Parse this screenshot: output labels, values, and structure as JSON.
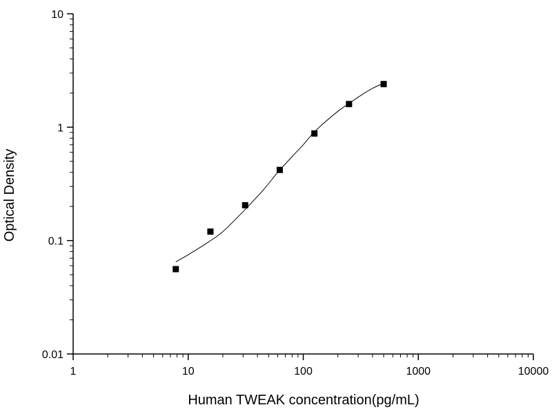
{
  "chart_data": {
    "type": "scatter",
    "title": "",
    "xlabel": "Human TWEAK concentration(pg/mL)",
    "ylabel": "Optical Density",
    "xscale": "log",
    "yscale": "log",
    "xlim": [
      1,
      10000
    ],
    "ylim": [
      0.01,
      10
    ],
    "x_ticks": [
      "1",
      "10",
      "100",
      "1000",
      "10000"
    ],
    "y_ticks": [
      "0.01",
      "0.1",
      "1",
      "10"
    ],
    "grid": false,
    "legend": "none",
    "series": [
      {
        "marker": "square",
        "color": "#000000",
        "x": [
          7.8,
          15.6,
          31.25,
          62.5,
          125,
          250,
          500
        ],
        "y": [
          0.056,
          0.12,
          0.205,
          0.42,
          0.88,
          1.6,
          2.4
        ]
      }
    ],
    "fit_curve": {
      "color": "#000000",
      "x_range": [
        7.8,
        500
      ],
      "points": [
        [
          7.8,
          0.065
        ],
        [
          10,
          0.075
        ],
        [
          15,
          0.097
        ],
        [
          20,
          0.12
        ],
        [
          30,
          0.18
        ],
        [
          45,
          0.28
        ],
        [
          60,
          0.4
        ],
        [
          80,
          0.55
        ],
        [
          100,
          0.7
        ],
        [
          120,
          0.87
        ],
        [
          150,
          1.08
        ],
        [
          200,
          1.38
        ],
        [
          250,
          1.62
        ],
        [
          320,
          1.92
        ],
        [
          400,
          2.2
        ],
        [
          500,
          2.45
        ]
      ]
    }
  }
}
